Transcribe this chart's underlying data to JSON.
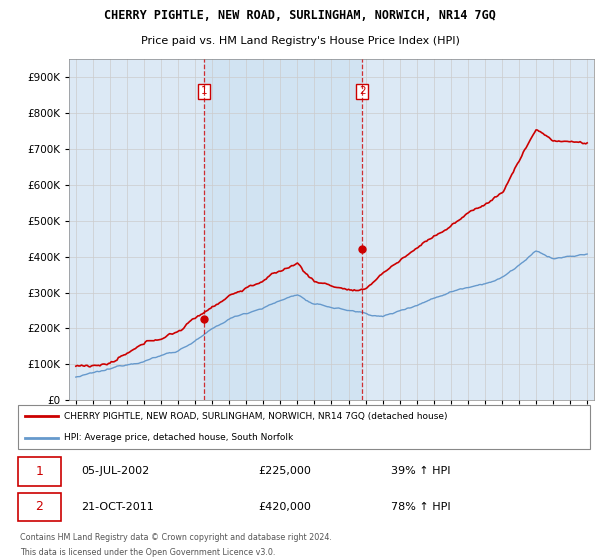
{
  "title": "CHERRY PIGHTLE, NEW ROAD, SURLINGHAM, NORWICH, NR14 7GQ",
  "subtitle": "Price paid vs. HM Land Registry's House Price Index (HPI)",
  "legend_line1": "CHERRY PIGHTLE, NEW ROAD, SURLINGHAM, NORWICH, NR14 7GQ (detached house)",
  "legend_line2": "HPI: Average price, detached house, South Norfolk",
  "footnote1": "Contains HM Land Registry data © Crown copyright and database right 2024.",
  "footnote2": "This data is licensed under the Open Government Licence v3.0.",
  "sale1_date": "05-JUL-2002",
  "sale1_price": "£225,000",
  "sale1_hpi": "39% ↑ HPI",
  "sale2_date": "21-OCT-2011",
  "sale2_price": "£420,000",
  "sale2_hpi": "78% ↑ HPI",
  "sale1_year": 2002.5,
  "sale1_value": 225000,
  "sale2_year": 2011.8,
  "sale2_value": 420000,
  "ylim_min": 0,
  "ylim_max": 950000,
  "red_color": "#cc0000",
  "blue_color": "#6699cc",
  "background_color": "#dce9f5",
  "shade_color": "#d0e4f5",
  "grid_color": "#cccccc",
  "white": "#ffffff"
}
